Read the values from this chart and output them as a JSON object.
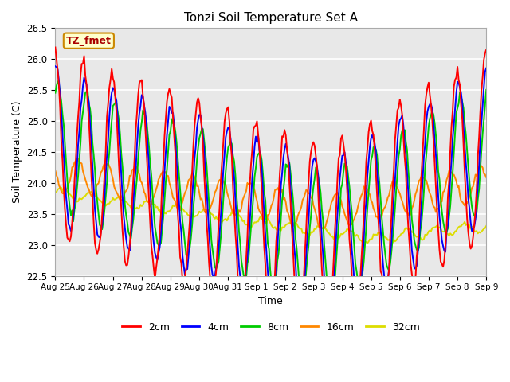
{
  "title": "Tonzi Soil Temperature Set A",
  "xlabel": "Time",
  "ylabel": "Soil Temperature (C)",
  "ylim": [
    22.5,
    26.5
  ],
  "annotation_text": "TZ_fmet",
  "annotation_bg": "#ffffcc",
  "annotation_border": "#cc8800",
  "background_color": "#e8e8e8",
  "grid_color": "#ffffff",
  "series_colors": {
    "2cm": "#ff0000",
    "4cm": "#0000ff",
    "8cm": "#00cc00",
    "16cm": "#ff8800",
    "32cm": "#dddd00"
  },
  "series_lw": 1.4,
  "xtick_labels": [
    "Aug 25",
    "Aug 26",
    "Aug 27",
    "Aug 28",
    "Aug 29",
    "Aug 30",
    "Aug 31",
    "Sep 1",
    "Sep 2",
    "Sep 3",
    "Sep 4",
    "Sep 5",
    "Sep 6",
    "Sep 7",
    "Sep 8",
    "Sep 9"
  ],
  "ytick_labels": [
    "22.5",
    "23.0",
    "23.5",
    "24.0",
    "24.5",
    "25.0",
    "25.5",
    "26.0",
    "26.5"
  ],
  "ytick_values": [
    22.5,
    23.0,
    23.5,
    24.0,
    24.5,
    25.0,
    25.5,
    26.0,
    26.5
  ]
}
